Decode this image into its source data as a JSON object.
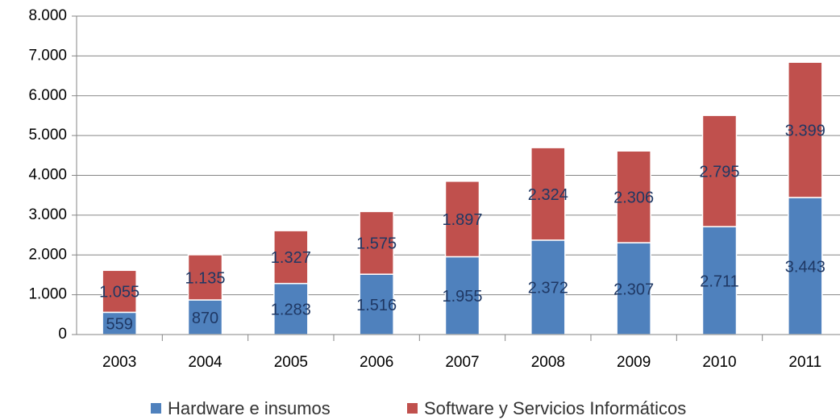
{
  "chart_data": {
    "type": "stacked_bar",
    "categories": [
      "2003",
      "2004",
      "2005",
      "2006",
      "2007",
      "2008",
      "2009",
      "2010",
      "2011"
    ],
    "series": [
      {
        "name": "Hardware e insumos",
        "color": "#4f81bd",
        "values": [
          559,
          870,
          1283,
          1516,
          1955,
          2372,
          2307,
          2711,
          3443
        ],
        "value_labels": [
          "559",
          "870",
          "1.283",
          "1.516",
          "1.955",
          "2.372",
          "2.307",
          "2.711",
          "3.443"
        ]
      },
      {
        "name": "Software y Servicios Informáticos",
        "color": "#c0504d",
        "values": [
          1055,
          1135,
          1327,
          1575,
          1897,
          2324,
          2306,
          2795,
          3399
        ],
        "value_labels": [
          "1.055",
          "1.135",
          "1.327",
          "1.575",
          "1.897",
          "2.324",
          "2.306",
          "2.795",
          "3.399"
        ]
      }
    ],
    "ylim": [
      0,
      8000
    ],
    "yticks": [
      0,
      {
        "value": 1000,
        "label": "1.000"
      },
      {
        "value": 2000,
        "label": "2.000"
      },
      {
        "value": 3000,
        "label": "3.000"
      },
      {
        "value": 4000,
        "label": "4.000"
      },
      {
        "value": 5000,
        "label": "5.000"
      },
      {
        "value": 6000,
        "label": "6.000"
      },
      {
        "value": 7000,
        "label": "7.000"
      },
      {
        "value": 8000,
        "label": "8.000"
      }
    ],
    "grid": true,
    "legend": "bottom"
  }
}
